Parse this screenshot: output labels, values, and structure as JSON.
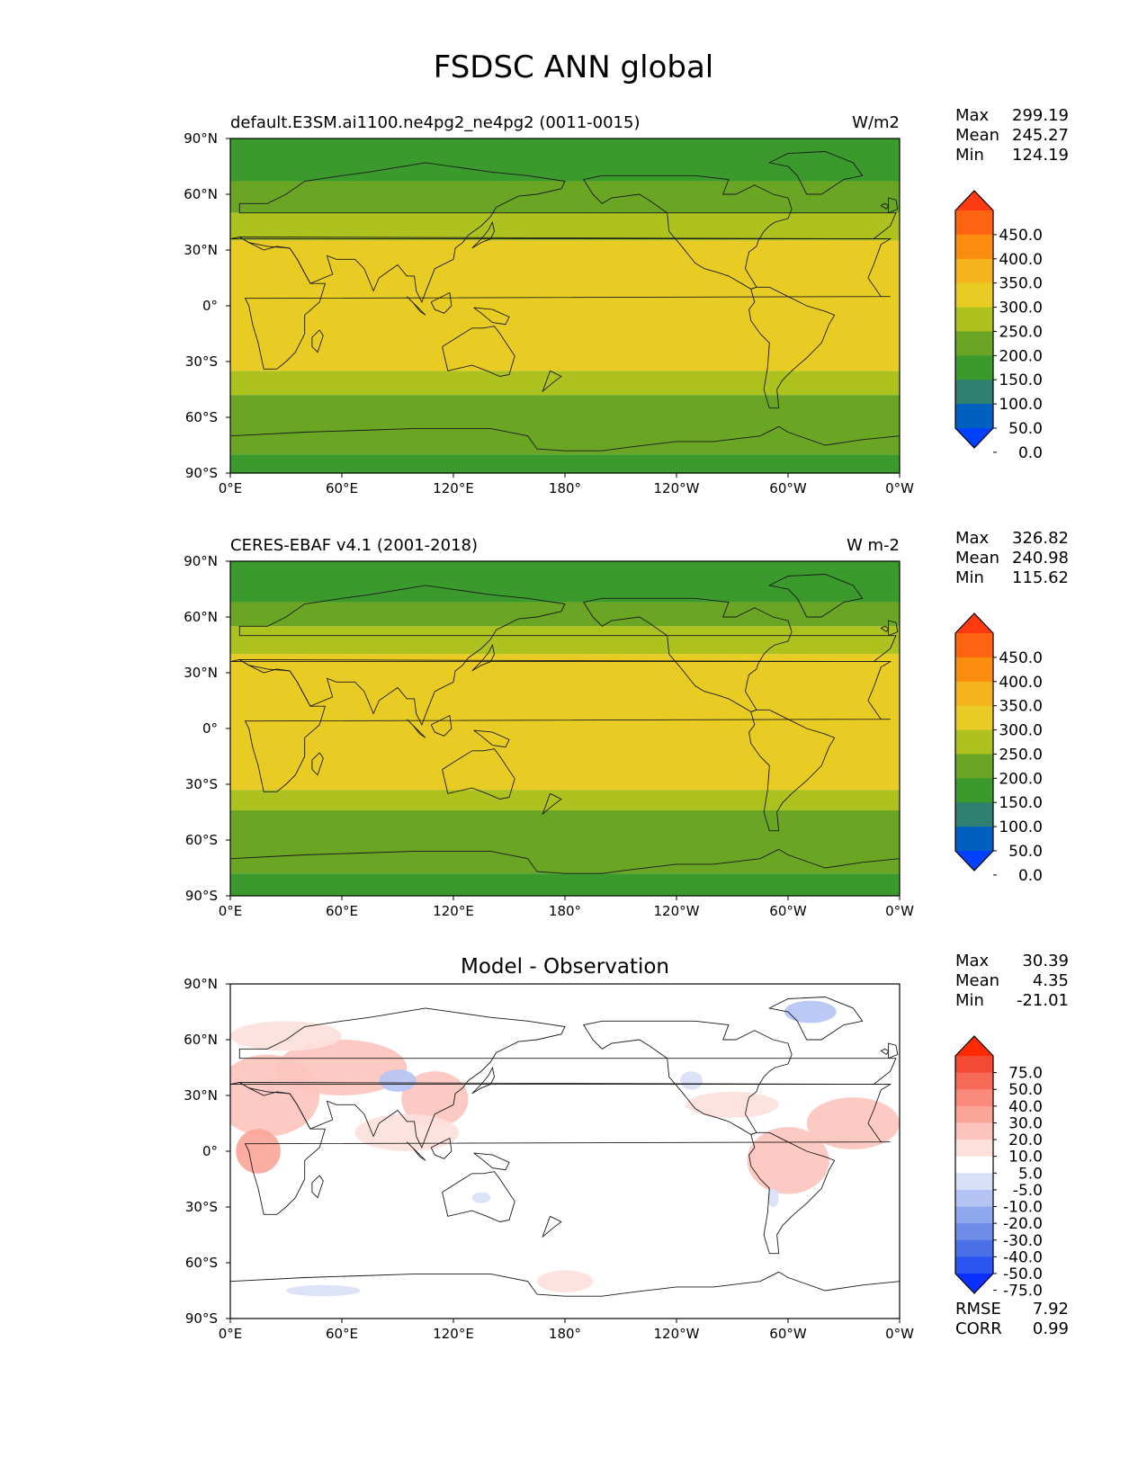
{
  "figure_title": "FSDSC ANN global",
  "chart_data": [
    {
      "type": "heatmap",
      "title": "default.E3SM.ai1100.ne4pg2_ne4pg2 (0011-0015)",
      "units": "W/m2",
      "x_ticks": [
        "0°E",
        "60°E",
        "120°E",
        "180°",
        "120°W",
        "60°W",
        "0°W"
      ],
      "y_ticks": [
        "90°N",
        "60°N",
        "30°N",
        "0°",
        "30°S",
        "60°S",
        "90°S"
      ],
      "stats": {
        "max_label": "Max",
        "max": "299.19",
        "mean_label": "Mean",
        "mean": "245.27",
        "min_label": "Min",
        "min": "124.19"
      },
      "colorbar": {
        "levels": [
          0,
          50,
          100,
          150,
          200,
          250,
          300,
          350,
          400,
          450
        ],
        "labels": [
          "450.0",
          "400.0",
          "350.0",
          "300.0",
          "250.0",
          "200.0",
          "150.0",
          "100.0",
          "50.0",
          "0.0"
        ],
        "colors": [
          "#0040ff",
          "#0060c0",
          "#2f8070",
          "#3a9a2c",
          "#6aa624",
          "#adc21e",
          "#e8cc24",
          "#f5b41e",
          "#fa8c10",
          "#ff6410",
          "#ff3a10"
        ],
        "extend": "both"
      },
      "zonal_bands": [
        {
          "lat": [
            90,
            67
          ],
          "value": 130
        },
        {
          "lat": [
            67,
            50
          ],
          "value": 175
        },
        {
          "lat": [
            50,
            35
          ],
          "value": 225
        },
        {
          "lat": [
            35,
            -35
          ],
          "value": 275
        },
        {
          "lat": [
            -35,
            -48
          ],
          "value": 225
        },
        {
          "lat": [
            -48,
            -80
          ],
          "value": 175
        },
        {
          "lat": [
            -80,
            -90
          ],
          "value": 130
        }
      ]
    },
    {
      "type": "heatmap",
      "title": "CERES-EBAF v4.1 (2001-2018)",
      "units": "W m-2",
      "x_ticks": [
        "0°E",
        "60°E",
        "120°E",
        "180°",
        "120°W",
        "60°W",
        "0°W"
      ],
      "y_ticks": [
        "90°N",
        "60°N",
        "30°N",
        "0°",
        "30°S",
        "60°S",
        "90°S"
      ],
      "stats": {
        "max_label": "Max",
        "max": "326.82",
        "mean_label": "Mean",
        "mean": "240.98",
        "min_label": "Min",
        "min": "115.62"
      },
      "colorbar": {
        "levels": [
          0,
          50,
          100,
          150,
          200,
          250,
          300,
          350,
          400,
          450
        ],
        "labels": [
          "450.0",
          "400.0",
          "350.0",
          "300.0",
          "250.0",
          "200.0",
          "150.0",
          "100.0",
          "50.0",
          "0.0"
        ],
        "colors": [
          "#0040ff",
          "#0060c0",
          "#2f8070",
          "#3a9a2c",
          "#6aa624",
          "#adc21e",
          "#e8cc24",
          "#f5b41e",
          "#fa8c10",
          "#ff6410",
          "#ff3a10"
        ],
        "extend": "both"
      },
      "zonal_bands": [
        {
          "lat": [
            90,
            68
          ],
          "value": 130
        },
        {
          "lat": [
            68,
            55
          ],
          "value": 175
        },
        {
          "lat": [
            55,
            40
          ],
          "value": 225
        },
        {
          "lat": [
            40,
            -33
          ],
          "value": 275
        },
        {
          "lat": [
            -33,
            -44
          ],
          "value": 225
        },
        {
          "lat": [
            -44,
            -78
          ],
          "value": 175
        },
        {
          "lat": [
            -78,
            -90
          ],
          "value": 130
        }
      ]
    },
    {
      "type": "heatmap",
      "title": "Model - Observation",
      "units": "",
      "x_ticks": [
        "0°E",
        "60°E",
        "120°E",
        "180°",
        "120°W",
        "60°W",
        "0°W"
      ],
      "y_ticks": [
        "90°N",
        "60°N",
        "30°N",
        "0°",
        "30°S",
        "60°S",
        "90°S"
      ],
      "stats": {
        "max_label": "Max",
        "max": "30.39",
        "mean_label": "Mean",
        "mean": "4.35",
        "min_label": "Min",
        "min": "-21.01"
      },
      "extra_stats": {
        "rmse_label": "RMSE",
        "rmse": "7.92",
        "corr_label": "CORR",
        "corr": "0.99"
      },
      "colorbar": {
        "levels": [
          -75,
          -50,
          -40,
          -30,
          -20,
          -10,
          -5,
          5,
          10,
          20,
          30,
          40,
          50,
          75
        ],
        "labels": [
          "75.0",
          "50.0",
          "40.0",
          "30.0",
          "20.0",
          "10.0",
          "5.0",
          "-5.0",
          "-10.0",
          "-20.0",
          "-30.0",
          "-40.0",
          "-50.0",
          "-75.0"
        ],
        "colors": [
          "#0a30ff",
          "#2a55f0",
          "#4a70e8",
          "#6f8ce8",
          "#90a8ee",
          "#b4c4f4",
          "#d8e0f8",
          "#ffffff",
          "#fde0dc",
          "#fcc4bc",
          "#fba498",
          "#f98a7c",
          "#f76a58",
          "#f44a34",
          "#ff2a00"
        ],
        "extend": "both"
      },
      "anomaly_patches": [
        {
          "lon": 20,
          "lat": 30,
          "rlon": 28,
          "rlat": 22,
          "value": 15
        },
        {
          "lon": 60,
          "lat": 45,
          "rlon": 35,
          "rlat": 15,
          "value": 12
        },
        {
          "lon": 15,
          "lat": 0,
          "rlon": 12,
          "rlat": 12,
          "value": 22
        },
        {
          "lon": 110,
          "lat": 28,
          "rlon": 18,
          "rlat": 15,
          "value": 15
        },
        {
          "lon": 95,
          "lat": 10,
          "rlon": 28,
          "rlat": 10,
          "value": 8
        },
        {
          "lon": 300,
          "lat": -5,
          "rlon": 22,
          "rlat": 18,
          "value": 12
        },
        {
          "lon": 335,
          "lat": 15,
          "rlon": 25,
          "rlat": 14,
          "value": 10
        },
        {
          "lon": 270,
          "lat": 25,
          "rlon": 25,
          "rlat": 7,
          "value": 8
        },
        {
          "lon": 30,
          "lat": 62,
          "rlon": 30,
          "rlat": 8,
          "value": 8
        },
        {
          "lon": 180,
          "lat": -70,
          "rlon": 15,
          "rlat": 6,
          "value": 8
        },
        {
          "lon": 90,
          "lat": 38,
          "rlon": 10,
          "rlat": 6,
          "value": -15
        },
        {
          "lon": 312,
          "lat": 75,
          "rlon": 14,
          "rlat": 6,
          "value": -15
        },
        {
          "lon": 248,
          "lat": 38,
          "rlon": 6,
          "rlat": 5,
          "value": -8
        },
        {
          "lon": 50,
          "lat": -75,
          "rlon": 20,
          "rlat": 3,
          "value": -8
        },
        {
          "lon": 292,
          "lat": -25,
          "rlon": 3,
          "rlat": 5,
          "value": -8
        },
        {
          "lon": 135,
          "lat": -25,
          "rlon": 5,
          "rlat": 3,
          "value": -8
        }
      ]
    }
  ]
}
